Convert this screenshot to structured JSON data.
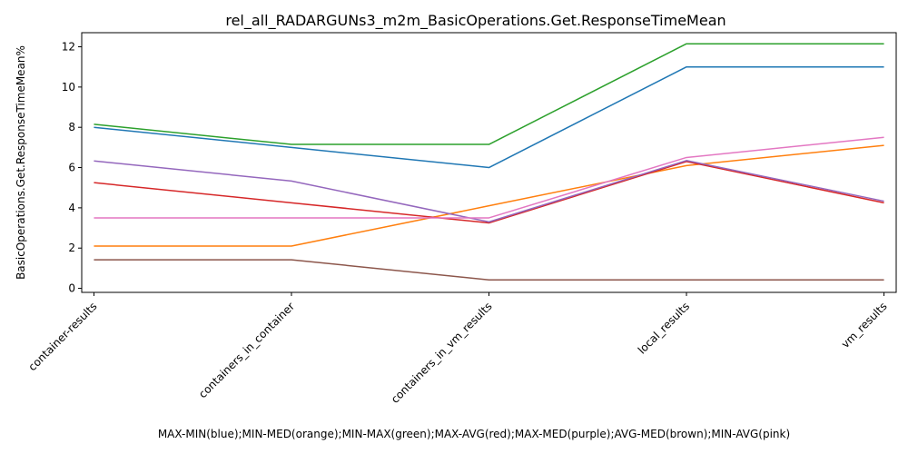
{
  "chart_data": {
    "type": "line",
    "title": "rel_all_RADARGUNs3_m2m_BasicOperations.Get.ResponseTimeMean",
    "xlabel": "MAX-MIN(blue);MIN-MED(orange);MIN-MAX(green);MAX-AVG(red);MAX-MED(purple);AVG-MED(brown);MIN-AVG(pink)",
    "ylabel": "BasicOperations.Get.ResponseTimeMean%",
    "categories": [
      "container-results",
      "containers_in_container",
      "containers_in_vm_results",
      "local_results",
      "vm_results"
    ],
    "ylim": [
      -0.2,
      12.7
    ],
    "yticks": [
      0,
      2,
      4,
      6,
      8,
      10,
      12
    ],
    "grid": false,
    "series": [
      {
        "color": "#1f77b4",
        "values": [
          8.0,
          7.0,
          6.0,
          11.0,
          11.0
        ]
      },
      {
        "color": "#ff7f0e",
        "values": [
          2.1,
          2.1,
          4.1,
          6.1,
          7.1
        ]
      },
      {
        "color": "#2ca02c",
        "values": [
          8.15,
          7.15,
          7.15,
          12.15,
          12.15
        ]
      },
      {
        "color": "#d62728",
        "values": [
          5.25,
          4.25,
          3.25,
          6.3,
          4.25
        ]
      },
      {
        "color": "#9467bd",
        "values": [
          6.33,
          5.33,
          3.3,
          6.35,
          4.33
        ]
      },
      {
        "color": "#8c564b",
        "values": [
          1.42,
          1.42,
          0.42,
          0.42,
          0.42
        ]
      },
      {
        "color": "#e377c2",
        "values": [
          3.5,
          3.5,
          3.5,
          6.5,
          7.5
        ]
      }
    ]
  }
}
